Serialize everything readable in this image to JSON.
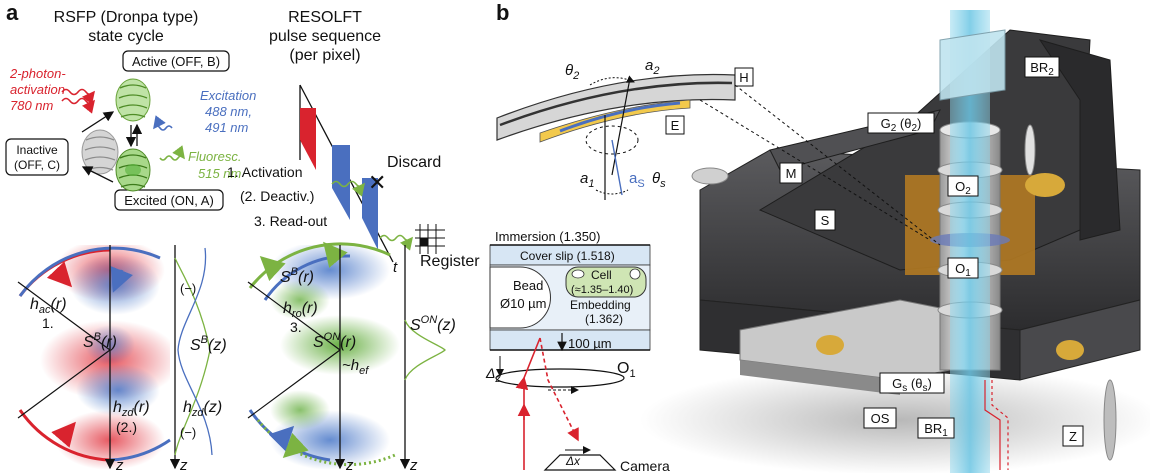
{
  "panel_a": {
    "label": "a",
    "state_cycle": {
      "title_line1": "RSFP (Dronpa type)",
      "title_line2": "state cycle",
      "activation_line1": "2-photon-",
      "activation_line2": "activation",
      "activation_line3": "780 nm",
      "active_state": "Active (OFF, B)",
      "inactive_line1": "Inactive",
      "inactive_line2": "(OFF, C)",
      "excited_state": "Excited (ON, A)",
      "excitation_line1": "Excitation",
      "excitation_line2": "488 nm,",
      "excitation_line3": "491 nm",
      "fluoresc_line1": "Fluoresc.",
      "fluoresc_line2": "515 nm"
    },
    "pulse_sequence": {
      "title_line1": "RESOLFT",
      "title_line2": "pulse sequence",
      "title_line3": "(per pixel)",
      "step1": "1. Activation",
      "step2": "(2. Deactiv.)",
      "step3": "3. Read-out",
      "time_axis": "t",
      "discard": "Discard",
      "register": "Register"
    },
    "psf": {
      "h_ac": "h",
      "h_ac_sub": "ac",
      "h_ac_arg": "(r)",
      "step1": "1.",
      "sb_r": "S",
      "sb_r_sup": "B",
      "sb_r_arg": "(r)",
      "h_zd": "h",
      "h_zd_sub": "zd",
      "h_zd_arg": "(r)",
      "step2": "(2.)",
      "sb_z": "S",
      "sb_z_sup": "B",
      "sb_z_arg": "(z)",
      "hzd_z": "h",
      "hzd_z_sub": "zd",
      "hzd_z_arg": "(z)",
      "sb_r2": "S",
      "sb_r2_sup": "B",
      "sb_r2_arg": "(r)",
      "h_ro": "h",
      "h_ro_sub": "ro",
      "h_ro_arg": "(r)",
      "step3": "3.",
      "son_r": "S",
      "son_r_sup": "ON",
      "son_r_arg": "(r)",
      "h_ef": "~h",
      "h_ef_sub": "ef",
      "son_z": "S",
      "son_z_sup": "ON",
      "son_z_arg": "(z)",
      "z_axis": "z",
      "minus_marker": "(−)"
    }
  },
  "panel_b": {
    "label": "b",
    "holder": {
      "theta2": "θ",
      "theta2_sub": "2",
      "a2": "a",
      "a2_sub": "2",
      "a1": "a",
      "a1_sub": "1",
      "as": "a",
      "as_sub": "S",
      "thetas": "θ",
      "thetas_sub": "s",
      "tag_H": "H",
      "tag_E": "E"
    },
    "sample": {
      "immersion": "Immersion (1.350)",
      "cover_slip": "Cover slip (1.518)",
      "bead_line1": "Bead",
      "bead_line2": "Ø10 µm",
      "cell_line1": "Cell",
      "cell_line2": "(≈1.35–1.40)",
      "embedding_line1": "Embedding",
      "embedding_line2": "(1.362)",
      "thickness": "100 µm",
      "delta_z": "Δ",
      "delta_z_sub": "z",
      "objective": "O",
      "objective_sub": "1",
      "delta_x": "Δx",
      "camera": "Camera"
    },
    "microscope_tags": {
      "BR2": "BR",
      "BR2_sub": "2",
      "G2": "G",
      "G2_sub": "2",
      "G2_theta": " (θ",
      "G2_theta_sub": "2",
      "G2_close": ")",
      "M": "M",
      "O2": "O",
      "O2_sub": "2",
      "S": "S",
      "O1": "O",
      "O1_sub": "1",
      "Gs": "G",
      "Gs_sub": "s",
      "Gs_theta": " (θ",
      "Gs_theta_sub": "s",
      "Gs_close": ")",
      "OS": "OS",
      "BR1": "BR",
      "BR1_sub": "1",
      "Z": "Z"
    }
  },
  "colors": {
    "activation_red": "#d9232e",
    "excitation_blue": "#4a6fbf",
    "fluorescence_green": "#7cb342",
    "beam_cyan": "#7fd0e8",
    "machine_dark": "#3a3a3c",
    "brass": "#c8962e"
  }
}
